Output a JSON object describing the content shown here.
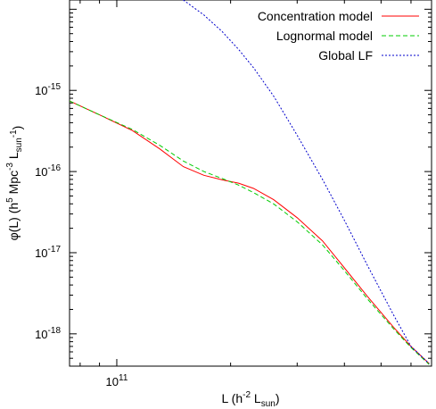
{
  "chart_data": {
    "type": "line",
    "xlabel": "L (h^-2 L_sun)",
    "ylabel": "φ(L) (h^5 Mpc^-3 L_sun^-1)",
    "xscale": "log",
    "yscale": "log",
    "xlim": [
      75000000000.0,
      680000000000.0
    ],
    "ylim": [
      4e-19,
      1.3e-14
    ],
    "x_ticks_major": [
      100000000000.0
    ],
    "x_tick_labels": [
      "10^11"
    ],
    "y_ticks_major": [
      1e-18,
      1e-17,
      1e-16,
      1e-15
    ],
    "y_tick_labels": [
      "10^-18",
      "10^-17",
      "10^-16",
      "10^-15"
    ],
    "grid": false,
    "legend_position": "top-right",
    "series": [
      {
        "name": "Concentration model",
        "color": "#ff0000",
        "style": "solid",
        "x": [
          75000000000.0,
          90000000000.0,
          110000000000.0,
          130000000000.0,
          150000000000.0,
          170000000000.0,
          190000000000.0,
          210000000000.0,
          230000000000.0,
          260000000000.0,
          300000000000.0,
          350000000000.0,
          400000000000.0,
          460000000000.0,
          540000000000.0,
          600000000000.0,
          670000000000.0
        ],
        "y": [
          7.4e-16,
          5e-16,
          3.2e-16,
          1.9e-16,
          1.15e-16,
          9e-17,
          7.9e-17,
          7.2e-17,
          6.2e-17,
          4.5e-17,
          2.7e-17,
          1.4e-17,
          6.5e-18,
          2.9e-18,
          1.2e-18,
          7e-19,
          4.3e-19
        ]
      },
      {
        "name": "Lognormal model",
        "color": "#00cc00",
        "style": "dashed",
        "x": [
          75000000000.0,
          90000000000.0,
          110000000000.0,
          130000000000.0,
          150000000000.0,
          170000000000.0,
          190000000000.0,
          210000000000.0,
          230000000000.0,
          260000000000.0,
          300000000000.0,
          350000000000.0,
          400000000000.0,
          460000000000.0,
          540000000000.0,
          600000000000.0,
          670000000000.0
        ],
        "y": [
          7.4e-16,
          5e-16,
          3.3e-16,
          2.1e-16,
          1.35e-16,
          1e-16,
          8.2e-17,
          6.8e-17,
          5.5e-17,
          4e-17,
          2.4e-17,
          1.25e-17,
          6e-18,
          2.7e-18,
          1.15e-18,
          6.8e-19,
          4.2e-19
        ]
      },
      {
        "name": "Global LF",
        "color": "#0000cc",
        "style": "dotted",
        "x": [
          150000000000.0,
          170000000000.0,
          190000000000.0,
          210000000000.0,
          230000000000.0,
          260000000000.0,
          300000000000.0,
          350000000000.0,
          400000000000.0,
          460000000000.0,
          540000000000.0,
          600000000000.0,
          670000000000.0
        ],
        "y": [
          1.3e-14,
          8.5e-15,
          5.3e-15,
          3.2e-15,
          1.9e-15,
          8.5e-16,
          2.8e-16,
          8e-17,
          2.5e-17,
          7e-18,
          1.7e-18,
          7e-19,
          4.3e-19
        ]
      }
    ]
  }
}
